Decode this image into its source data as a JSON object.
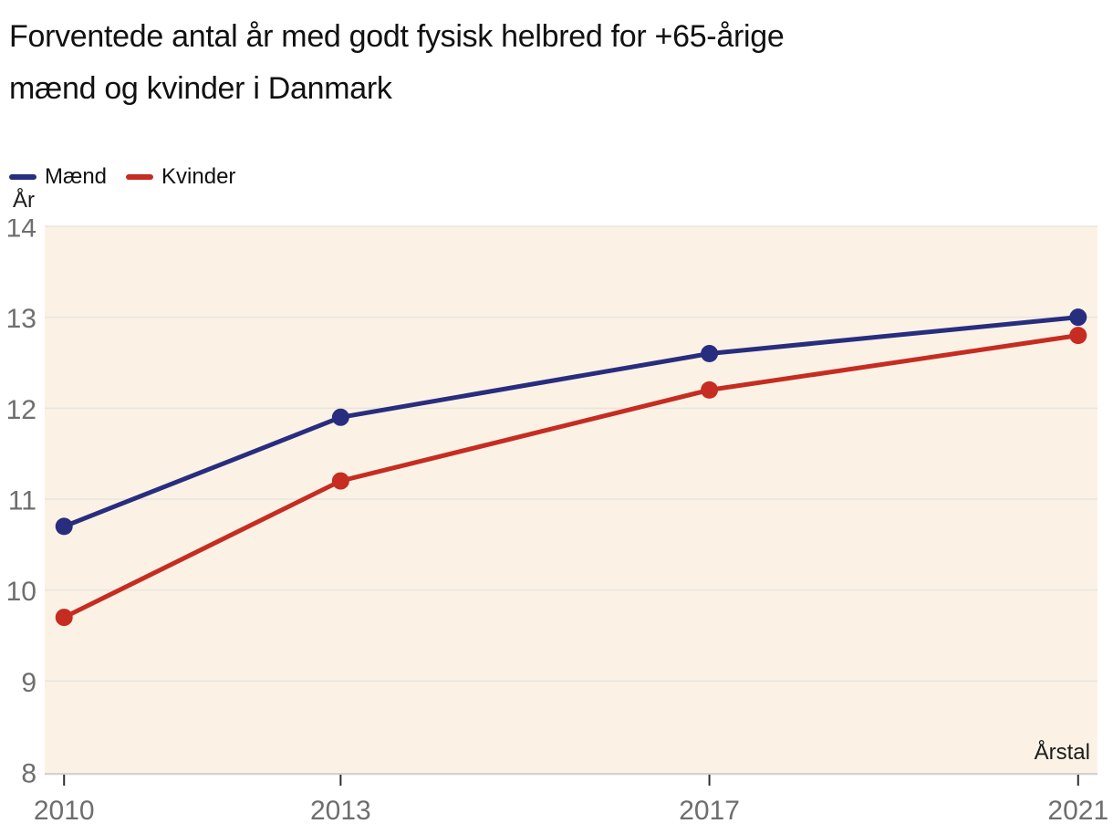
{
  "header": {
    "title_lines": [
      "Forventede antal år med godt fysisk helbred for +65-årige",
      "mænd og kvinder i Danmark"
    ]
  },
  "chart_data": {
    "type": "line",
    "title": "Forventede antal år med godt fysisk helbred for +65-årige mænd og kvinder i Danmark",
    "x": [
      2010,
      2013,
      2017,
      2021
    ],
    "series": [
      {
        "name": "Mænd",
        "color": "#292D7F",
        "values": [
          10.7,
          11.9,
          12.6,
          13.0
        ]
      },
      {
        "name": "Kvinder",
        "color": "#C62C21",
        "values": [
          9.7,
          11.2,
          12.2,
          12.8
        ]
      }
    ],
    "xlabel": "Årstal",
    "ylabel": "År",
    "ylim": [
      8,
      14
    ],
    "yticks": [
      8,
      9,
      10,
      11,
      12,
      13,
      14
    ],
    "xlim": [
      2009.79,
      2021.21
    ],
    "grid": true,
    "legend_position": "top-left",
    "plot_bg": "#FBF2E5",
    "gridline_color": "#E8E5DF",
    "axisline_color": "#D4D2CD",
    "tick_mark_color": "#2f2f2f",
    "tick_label_color": "#6e6e6e"
  }
}
